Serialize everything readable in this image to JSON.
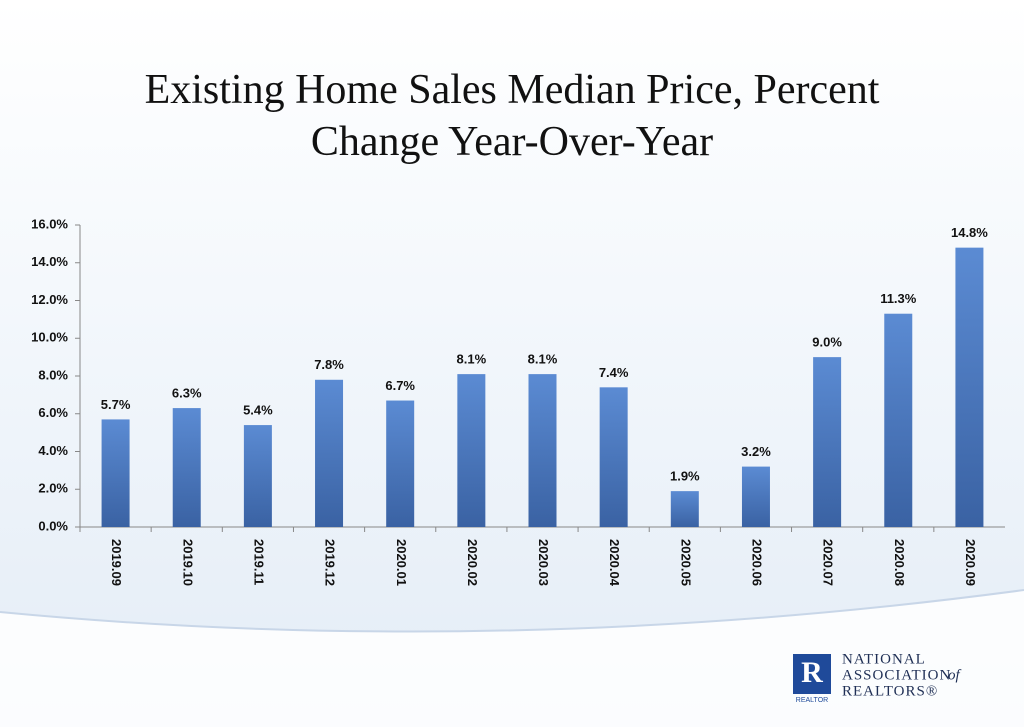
{
  "chart_data": {
    "type": "bar",
    "title": "Existing Home Sales Median Price, Percent Change Year-Over-Year",
    "categories": [
      "2019.09",
      "2019.10",
      "2019.11",
      "2019.12",
      "2020.01",
      "2020.02",
      "2020.03",
      "2020.04",
      "2020.05",
      "2020.06",
      "2020.07",
      "2020.08",
      "2020.09"
    ],
    "values": [
      5.7,
      6.3,
      5.4,
      7.8,
      6.7,
      8.1,
      8.1,
      7.4,
      1.9,
      3.2,
      9.0,
      11.3,
      14.8
    ],
    "value_labels": [
      "5.7%",
      "6.3%",
      "5.4%",
      "7.8%",
      "6.7%",
      "8.1%",
      "8.1%",
      "7.4%",
      "1.9%",
      "3.2%",
      "9.0%",
      "11.3%",
      "14.8%"
    ],
    "color": "#4a78c0",
    "ylim": [
      0,
      16
    ],
    "yticks": [
      {
        "value": 0,
        "label": "0.0%"
      },
      {
        "value": 2,
        "label": "2.0%"
      },
      {
        "value": 4,
        "label": "4.0%"
      },
      {
        "value": 6,
        "label": "6.0%"
      },
      {
        "value": 8,
        "label": "8.0%"
      },
      {
        "value": 10,
        "label": "10.0%"
      },
      {
        "value": 12,
        "label": "12.0%"
      },
      {
        "value": 14,
        "label": "14.0%"
      },
      {
        "value": 16,
        "label": "16.0%"
      }
    ],
    "grid": false
  },
  "logo": {
    "mark": "R",
    "badge": "REALTOR",
    "lines": [
      "NATIONAL",
      "ASSOCIATION",
      "of",
      "REALTORS®"
    ]
  }
}
